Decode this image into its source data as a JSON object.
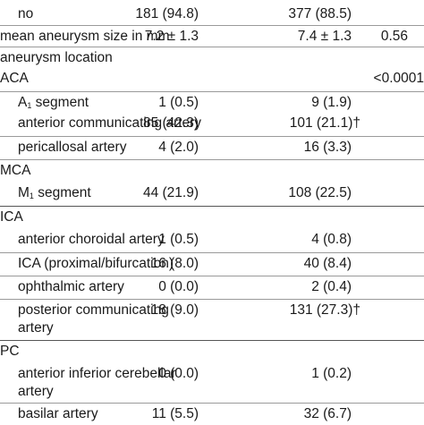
{
  "rows": [
    {
      "label": "no",
      "v1": "181 (94.8)",
      "v2": "377 (88.5)",
      "p": ""
    },
    {
      "label": "mean aneurysm size in mm",
      "v1": "7.2 ± 1.3",
      "v2": "7.4 ± 1.3",
      "p": "0.56"
    },
    {
      "label": "aneurysm location",
      "v1": "",
      "v2": "",
      "p": ""
    },
    {
      "label": "ACA",
      "v1": "",
      "v2": "",
      "p": "<0.0001"
    },
    {
      "label_main": "A",
      "label_sub": "1",
      "label_rest": " segment",
      "v1": "1 (0.5)",
      "v2": "9 (1.9)",
      "p": ""
    },
    {
      "label": "anterior communicating artery",
      "v1": "85 (42.3)",
      "v2": "101 (21.1)†",
      "p": ""
    },
    {
      "label": "pericallosal artery",
      "v1": "4 (2.0)",
      "v2": "16 (3.3)",
      "p": ""
    },
    {
      "label": "MCA",
      "v1": "",
      "v2": "",
      "p": ""
    },
    {
      "label_main": "M",
      "label_sub": "1",
      "label_rest": " segment",
      "v1": "44 (21.9)",
      "v2": "108 (22.5)",
      "p": ""
    },
    {
      "label": "ICA",
      "v1": "",
      "v2": "",
      "p": ""
    },
    {
      "label": "anterior choroidal artery",
      "v1": "1 (0.5)",
      "v2": "4 (0.8)",
      "p": ""
    },
    {
      "label": "ICA (proximal/bifurcation)",
      "v1": "16 (8.0)",
      "v2": "40 (8.4)",
      "p": ""
    },
    {
      "label": "ophthalmic artery",
      "v1": "0 (0.0)",
      "v2": "2 (0.4)",
      "p": ""
    },
    {
      "label": "posterior communicating artery",
      "v1": "18 (9.0)",
      "v2": "131 (27.3)†",
      "p": ""
    },
    {
      "label": "PC",
      "v1": "",
      "v2": "",
      "p": ""
    },
    {
      "label": "anterior inferior cerebellar artery",
      "v1": "0 (0.0)",
      "v2": "1 (0.2)",
      "p": ""
    },
    {
      "label": "basilar artery",
      "v1": "11 (5.5)",
      "v2": "32 (6.7)",
      "p": ""
    }
  ]
}
